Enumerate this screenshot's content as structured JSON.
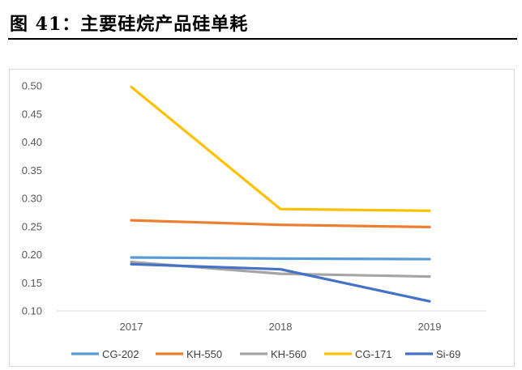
{
  "figure": {
    "title": "图 41：主要硅烷产品硅单耗"
  },
  "chart_data": {
    "type": "line",
    "categories": [
      "2017",
      "2018",
      "2019"
    ],
    "ylim": [
      0.1,
      0.5
    ],
    "yticks": [
      "0.10",
      "0.15",
      "0.20",
      "0.25",
      "0.30",
      "0.35",
      "0.40",
      "0.45",
      "0.50"
    ],
    "grid": false,
    "legend_position": "bottom",
    "series": [
      {
        "name": "CG-202",
        "color": "#5b9bd5",
        "values": [
          0.195,
          0.193,
          0.192
        ]
      },
      {
        "name": "KH-550",
        "color": "#ed7d31",
        "values": [
          0.261,
          0.253,
          0.249
        ]
      },
      {
        "name": "KH-560",
        "color": "#a5a5a5",
        "values": [
          0.187,
          0.166,
          0.161
        ]
      },
      {
        "name": "CG-171",
        "color": "#ffc000",
        "values": [
          0.498,
          0.281,
          0.278
        ]
      },
      {
        "name": "Si-69",
        "color": "#4472c4",
        "values": [
          0.183,
          0.174,
          0.117
        ]
      }
    ]
  }
}
